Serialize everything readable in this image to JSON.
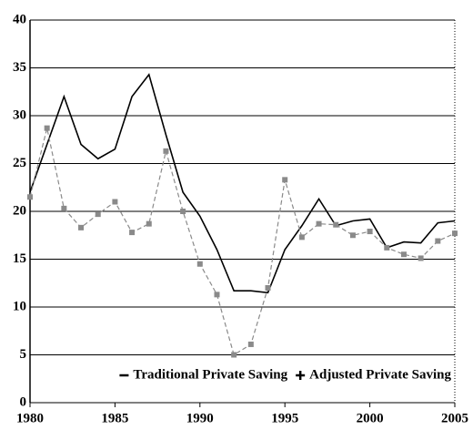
{
  "chart_data": {
    "type": "line",
    "x": [
      1980,
      1981,
      1982,
      1983,
      1984,
      1985,
      1986,
      1987,
      1988,
      1989,
      1990,
      1991,
      1992,
      1993,
      1994,
      1995,
      1996,
      1997,
      1998,
      1999,
      2000,
      2001,
      2002,
      2003,
      2004,
      2005
    ],
    "series": [
      {
        "name": "Traditional Private Saving",
        "color": "#000000",
        "values": [
          22,
          27,
          32,
          27,
          25.5,
          26.5,
          32,
          34.3,
          28,
          22,
          19.5,
          16,
          11.7,
          11.7,
          11.5,
          16,
          18.5,
          21.3,
          18.5,
          19,
          19.2,
          16.2,
          16.8,
          16.7,
          18.8,
          19
        ]
      },
      {
        "name": "Adjusted Private Saving",
        "color": "#8a8a8a",
        "values": [
          21.5,
          28.7,
          20.3,
          18.3,
          19.7,
          21,
          17.8,
          18.7,
          26.3,
          20,
          14.5,
          11.3,
          5,
          6.1,
          12,
          23.3,
          17.3,
          18.7,
          18.6,
          17.5,
          17.9,
          16.2,
          15.5,
          15.1,
          16.9,
          17.7
        ]
      }
    ],
    "xlim": [
      1980,
      2005
    ],
    "xticks": [
      1980,
      1985,
      1990,
      1995,
      2000,
      2005
    ],
    "ylim": [
      0,
      40
    ],
    "yticks": [
      0,
      5,
      10,
      15,
      20,
      25,
      30,
      35,
      40
    ],
    "grid": true,
    "legend": "bottom-right"
  }
}
